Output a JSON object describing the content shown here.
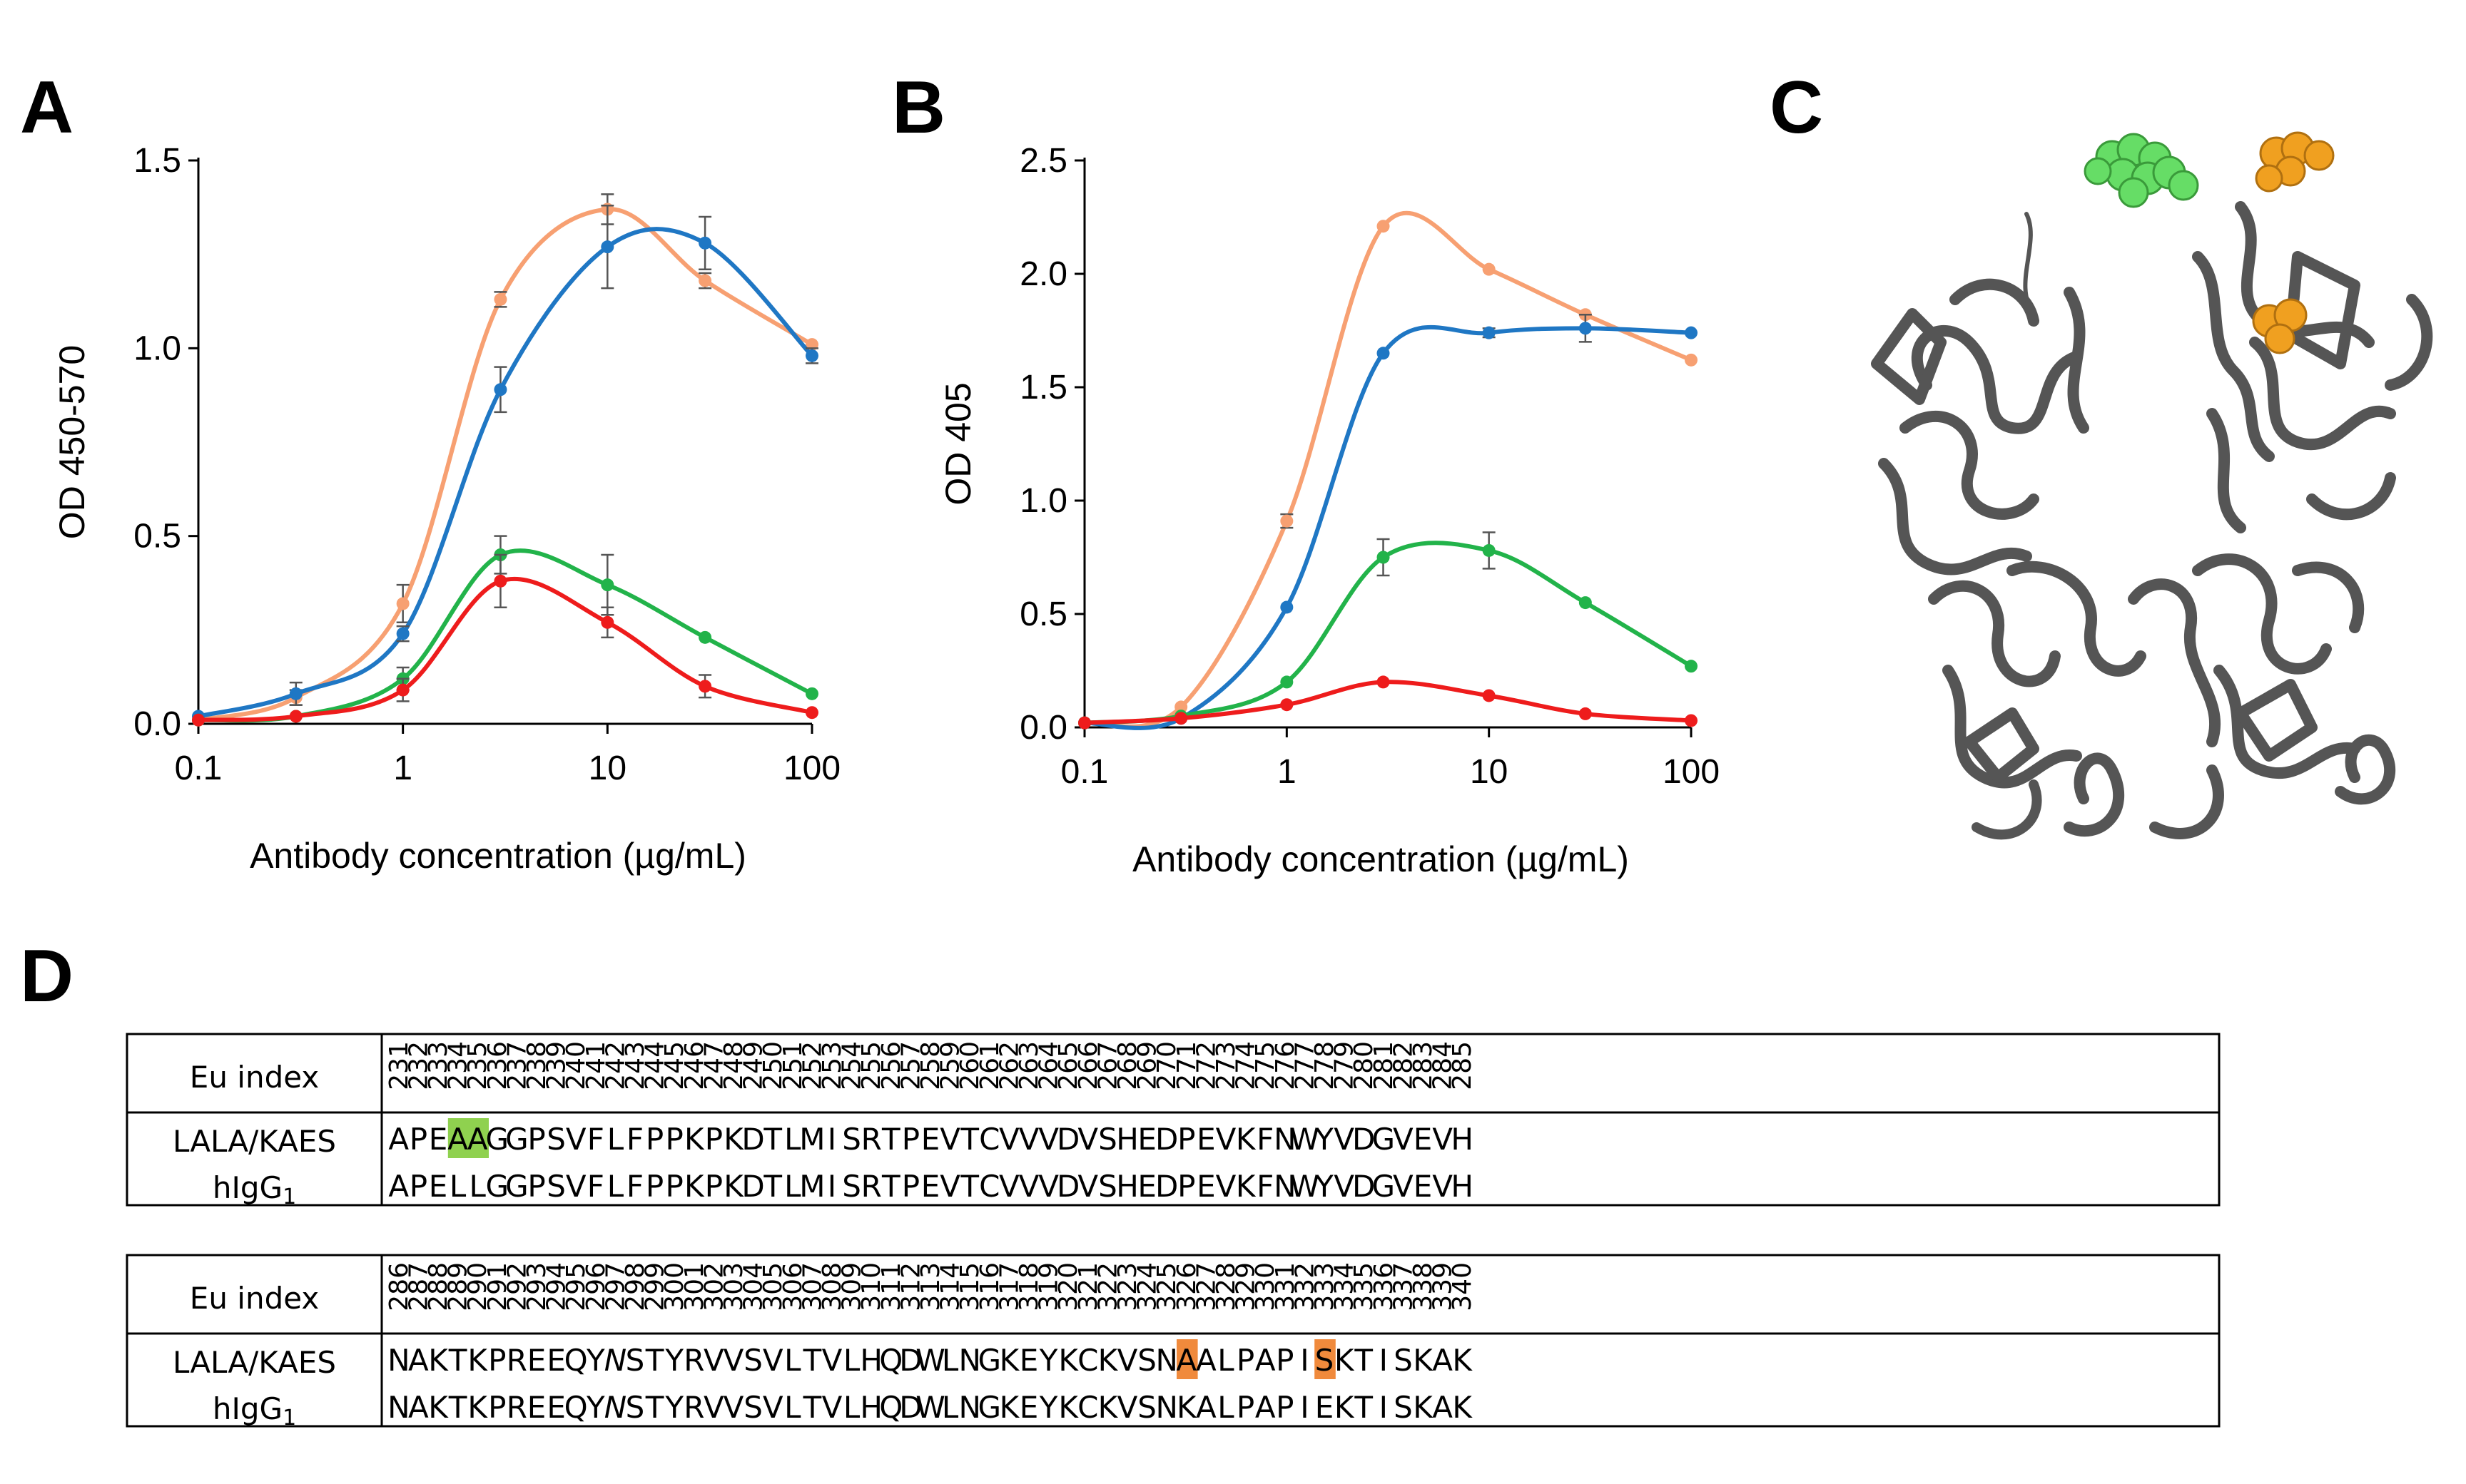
{
  "panels": {
    "a": "A",
    "b": "B",
    "c": "C",
    "d": "D"
  },
  "chart_data": [
    {
      "panel": "A",
      "type": "line",
      "xscale": "log",
      "xlabel": "Antibody concentration (µg/mL)",
      "ylabel": "OD 450-570",
      "xticks": [
        0.1,
        1,
        10,
        100
      ],
      "xticklabels": [
        "0.1",
        "1",
        "10",
        "100"
      ],
      "yticks": [
        0,
        0.5,
        1.0,
        1.5
      ],
      "yticklabels": [
        "0.0",
        "0.5",
        "1.0",
        "1.5"
      ],
      "xlim": [
        0.1,
        100
      ],
      "ylim": [
        0,
        1.5
      ],
      "x": [
        0.1,
        0.3,
        1,
        3,
        10,
        30,
        100
      ],
      "series": [
        {
          "name": "orange",
          "color": "#f7a072",
          "values": [
            0.01,
            0.07,
            0.32,
            1.13,
            1.37,
            1.18,
            1.01
          ],
          "errors": [
            0.01,
            0.02,
            0.05,
            0.02,
            0.04,
            0.02,
            0.01
          ]
        },
        {
          "name": "blue",
          "color": "#1f77c4",
          "values": [
            0.02,
            0.08,
            0.24,
            0.89,
            1.27,
            1.28,
            0.98
          ],
          "errors": [
            0.01,
            0.03,
            0.02,
            0.06,
            0.11,
            0.07,
            0.02
          ]
        },
        {
          "name": "green",
          "color": "#22b34a",
          "values": [
            0.01,
            0.02,
            0.12,
            0.45,
            0.37,
            0.23,
            0.08
          ],
          "errors": [
            0.01,
            0.01,
            0.03,
            0.05,
            0.08,
            0.01,
            0.01
          ]
        },
        {
          "name": "red",
          "color": "#ee1c1c",
          "values": [
            0.01,
            0.02,
            0.09,
            0.38,
            0.27,
            0.1,
            0.03
          ],
          "errors": [
            0.01,
            0.01,
            0.03,
            0.07,
            0.04,
            0.03,
            0.01
          ]
        }
      ]
    },
    {
      "panel": "B",
      "type": "line",
      "xscale": "log",
      "xlabel": "Antibody concentration (µg/mL)",
      "ylabel": "OD 405",
      "xticks": [
        0.1,
        1,
        10,
        100
      ],
      "xticklabels": [
        "0.1",
        "1",
        "10",
        "100"
      ],
      "yticks": [
        0,
        0.5,
        1.0,
        1.5,
        2.0,
        2.5
      ],
      "yticklabels": [
        "0.0",
        "0.5",
        "1.0",
        "1.5",
        "2.0",
        "2.5"
      ],
      "xlim": [
        0.1,
        100
      ],
      "ylim": [
        0,
        2.5
      ],
      "x": [
        0.1,
        0.3,
        1,
        3,
        10,
        30,
        100
      ],
      "series": [
        {
          "name": "orange",
          "color": "#f7a072",
          "values": [
            0.02,
            0.09,
            0.91,
            2.21,
            2.02,
            1.82,
            1.62
          ],
          "errors": [
            0.01,
            0.01,
            0.03,
            0.01,
            0.01,
            0.01,
            0.01
          ]
        },
        {
          "name": "blue",
          "color": "#1f77c4",
          "values": [
            0.02,
            0.04,
            0.53,
            1.65,
            1.74,
            1.76,
            1.74
          ],
          "errors": [
            0.01,
            0.01,
            0.01,
            0.01,
            0.02,
            0.06,
            0.01
          ]
        },
        {
          "name": "green",
          "color": "#22b34a",
          "values": [
            0.02,
            0.05,
            0.2,
            0.75,
            0.78,
            0.55,
            0.27
          ],
          "errors": [
            0.01,
            0.01,
            0.01,
            0.08,
            0.08,
            0.01,
            0.01
          ]
        },
        {
          "name": "red",
          "color": "#ee1c1c",
          "values": [
            0.02,
            0.04,
            0.1,
            0.2,
            0.14,
            0.06,
            0.03
          ],
          "errors": [
            0.01,
            0.01,
            0.01,
            0.01,
            0.01,
            0.01,
            0.01
          ]
        }
      ]
    }
  ],
  "structure": {
    "description_color": "#555555",
    "green_color": "#66dd66",
    "orange_color": "#f0a020"
  },
  "table": {
    "header_label": "Eu index",
    "row1_label": "LALA/KAES",
    "row2_label_base": "hIgG",
    "row2_label_sub": "1",
    "highlight_green": "#8fd14f",
    "highlight_orange": "#f08a3c",
    "blocks": [
      {
        "indices": [
          "231",
          "232",
          "233",
          "234",
          "235",
          "236",
          "237",
          "238",
          "239",
          "240",
          "241",
          "242",
          "243",
          "244",
          "245",
          "246",
          "247",
          "248",
          "249",
          "250",
          "251",
          "252",
          "253",
          "254",
          "255",
          "256",
          "257",
          "258",
          "259",
          "260",
          "261",
          "262",
          "263",
          "264",
          "265",
          "266",
          "267",
          "268",
          "269",
          "270",
          "271",
          "272",
          "273",
          "274",
          "275",
          "276",
          "277",
          "278",
          "279",
          "280",
          "281",
          "282",
          "283",
          "284",
          "285"
        ],
        "lala_kaes": [
          "A",
          "P",
          "E",
          "A",
          "A",
          "G",
          "G",
          "P",
          "S",
          "V",
          "F",
          "L",
          "F",
          "P",
          "P",
          "K",
          "P",
          "K",
          "D",
          "T",
          "L",
          "M",
          "I",
          "S",
          "R",
          "T",
          "P",
          "E",
          "V",
          "T",
          "C",
          "V",
          "V",
          "V",
          "D",
          "V",
          "S",
          "H",
          "E",
          "D",
          "P",
          "E",
          "V",
          "K",
          "F",
          "N",
          "W",
          "Y",
          "V",
          "D",
          "G",
          "V",
          "E",
          "V",
          "H"
        ],
        "higg1": [
          "A",
          "P",
          "E",
          "L",
          "L",
          "G",
          "G",
          "P",
          "S",
          "V",
          "F",
          "L",
          "F",
          "P",
          "P",
          "K",
          "P",
          "K",
          "D",
          "T",
          "L",
          "M",
          "I",
          "S",
          "R",
          "T",
          "P",
          "E",
          "V",
          "T",
          "C",
          "V",
          "V",
          "V",
          "D",
          "V",
          "S",
          "H",
          "E",
          "D",
          "P",
          "E",
          "V",
          "K",
          "F",
          "N",
          "W",
          "Y",
          "V",
          "D",
          "G",
          "V",
          "E",
          "V",
          "H"
        ],
        "highlights": [
          {
            "col": 3,
            "color": "green"
          },
          {
            "col": 4,
            "color": "green"
          }
        ]
      },
      {
        "indices": [
          "286",
          "287",
          "288",
          "289",
          "290",
          "291",
          "292",
          "293",
          "294",
          "295",
          "296",
          "297",
          "298",
          "299",
          "300",
          "301",
          "302",
          "303",
          "304",
          "305",
          "306",
          "307",
          "308",
          "309",
          "310",
          "311",
          "312",
          "313",
          "314",
          "315",
          "316",
          "317",
          "318",
          "319",
          "320",
          "321",
          "322",
          "323",
          "324",
          "325",
          "326",
          "327",
          "328",
          "329",
          "330",
          "331",
          "332",
          "333",
          "334",
          "335",
          "336",
          "337",
          "338",
          "339",
          "340"
        ],
        "lala_kaes": [
          "N",
          "A",
          "K",
          "T",
          "K",
          "P",
          "R",
          "E",
          "E",
          "Q",
          "Y",
          "N",
          "S",
          "T",
          "Y",
          "R",
          "V",
          "V",
          "S",
          "V",
          "L",
          "T",
          "V",
          "L",
          "H",
          "Q",
          "D",
          "W",
          "L",
          "N",
          "G",
          "K",
          "E",
          "Y",
          "K",
          "C",
          "K",
          "V",
          "S",
          "N",
          "A",
          "A",
          "L",
          "P",
          "A",
          "P",
          "I",
          "S",
          "K",
          "T",
          "I",
          "S",
          "K",
          "A",
          "K"
        ],
        "higg1": [
          "N",
          "A",
          "K",
          "T",
          "K",
          "P",
          "R",
          "E",
          "E",
          "Q",
          "Y",
          "N",
          "S",
          "T",
          "Y",
          "R",
          "V",
          "V",
          "S",
          "V",
          "L",
          "T",
          "V",
          "L",
          "H",
          "Q",
          "D",
          "W",
          "L",
          "N",
          "G",
          "K",
          "E",
          "Y",
          "K",
          "C",
          "K",
          "V",
          "S",
          "N",
          "K",
          "A",
          "L",
          "P",
          "A",
          "P",
          "I",
          "E",
          "K",
          "T",
          "I",
          "S",
          "K",
          "A",
          "K"
        ],
        "italic_col": 11,
        "highlights": [
          {
            "col": 40,
            "color": "orange"
          },
          {
            "col": 47,
            "color": "orange"
          }
        ]
      }
    ]
  }
}
